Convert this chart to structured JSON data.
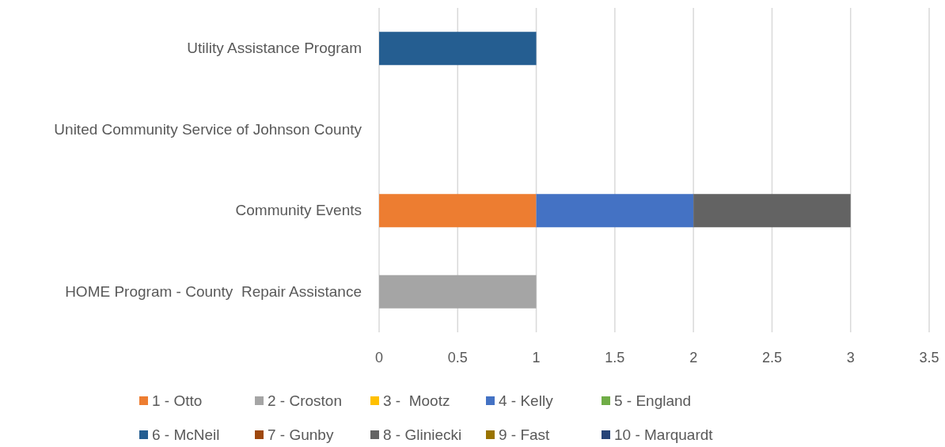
{
  "chart_data": {
    "type": "bar",
    "orientation": "horizontal",
    "stacked": true,
    "categories": [
      "Utility Assistance Program",
      "United Community Service of Johnson County",
      "Community Events",
      "HOME Program - County  Repair Assistance"
    ],
    "series": [
      {
        "name": "1 - Otto",
        "color": "#ed7d31",
        "values": [
          0,
          0,
          1,
          0
        ]
      },
      {
        "name": "2 - Croston",
        "color": "#a5a5a5",
        "values": [
          0,
          0,
          0,
          1
        ]
      },
      {
        "name": "3 -  Mootz",
        "color": "#ffc000",
        "values": [
          0,
          0,
          0,
          0
        ]
      },
      {
        "name": "4 - Kelly",
        "color": "#4472c4",
        "values": [
          0,
          0,
          1,
          0
        ]
      },
      {
        "name": "5 - England",
        "color": "#70ad47",
        "values": [
          0,
          0,
          0,
          0
        ]
      },
      {
        "name": "6 - McNeil",
        "color": "#255e91",
        "values": [
          1,
          0,
          0,
          0
        ]
      },
      {
        "name": "7 - Gunby",
        "color": "#9e480e",
        "values": [
          0,
          0,
          0,
          0
        ]
      },
      {
        "name": "8 - Gliniecki",
        "color": "#636363",
        "values": [
          0,
          0,
          1,
          0
        ]
      },
      {
        "name": "9 - Fast",
        "color": "#997300",
        "values": [
          0,
          0,
          0,
          0
        ]
      },
      {
        "name": "10 - Marquardt",
        "color": "#264478",
        "values": [
          0,
          0,
          0,
          0
        ]
      }
    ],
    "xlim": [
      0,
      3.5
    ],
    "xticks": [
      0,
      0.5,
      1,
      1.5,
      2,
      2.5,
      3,
      3.5
    ],
    "grid": "x",
    "legend": "bottom"
  }
}
